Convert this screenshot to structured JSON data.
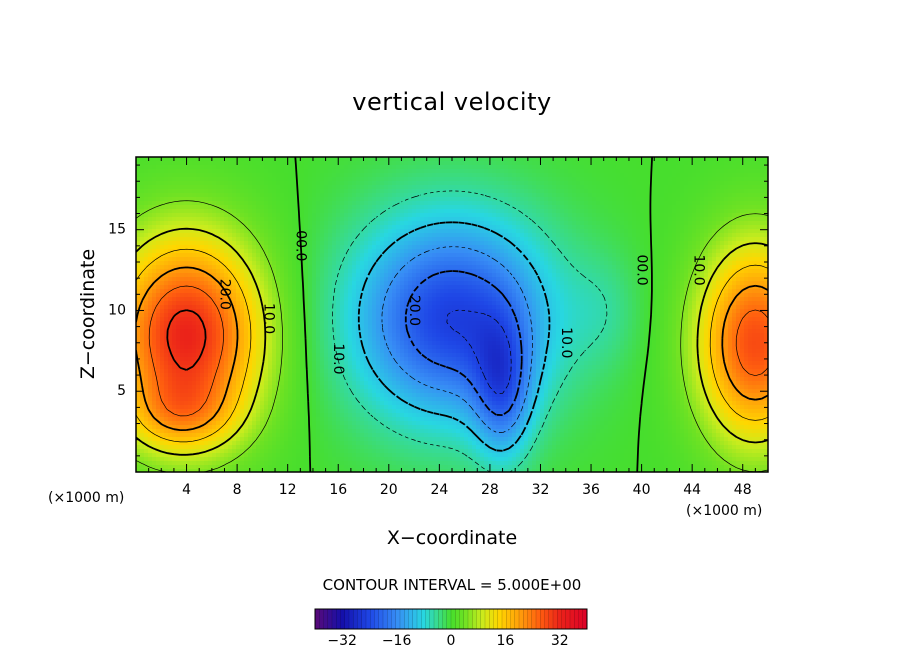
{
  "chart_data": {
    "type": "heatmap",
    "title": "vertical velocity",
    "xlabel": "X−coordinate",
    "ylabel": "Z−coordinate",
    "x_unit_left": "(×1000 m)",
    "x_unit_right": "(×1000 m)",
    "xlim": [
      0,
      50
    ],
    "ylim": [
      0,
      19.5
    ],
    "xticks": [
      "4",
      "8",
      "12",
      "16",
      "20",
      "24",
      "28",
      "32",
      "36",
      "40",
      "44",
      "48"
    ],
    "yticks": [
      "5",
      "10",
      "15"
    ],
    "contour_interval_text": "CONTOUR INTERVAL = 5.000E+00",
    "contour_interval": 5.0,
    "contour_labels": [
      {
        "text": "20.0",
        "x": 7,
        "y": 11
      },
      {
        "text": "10.0",
        "x": 10.5,
        "y": 9.5
      },
      {
        "text": "00.0",
        "x": 13,
        "y": 14
      },
      {
        "text": "10.0",
        "x": 16,
        "y": 7
      },
      {
        "text": "20.0",
        "x": 22,
        "y": 10
      },
      {
        "text": "10.0",
        "x": 34,
        "y": 8
      },
      {
        "text": "00.0",
        "x": 40,
        "y": 12.5
      },
      {
        "text": "10.0",
        "x": 44.5,
        "y": 12.5
      }
    ],
    "colorbar": {
      "ticks": [
        "−32",
        "−16",
        "0",
        "16",
        "32"
      ],
      "tick_values": [
        -32,
        -16,
        0,
        16,
        32
      ],
      "range": [
        -40,
        40
      ]
    },
    "field_features": [
      {
        "kind": "updraft",
        "x": 4,
        "y": 8,
        "peak": 32
      },
      {
        "kind": "downdraft",
        "x": 25,
        "y": 9,
        "peak": -25
      },
      {
        "kind": "updraft",
        "x": 48,
        "y": 8,
        "peak": 28
      }
    ]
  }
}
